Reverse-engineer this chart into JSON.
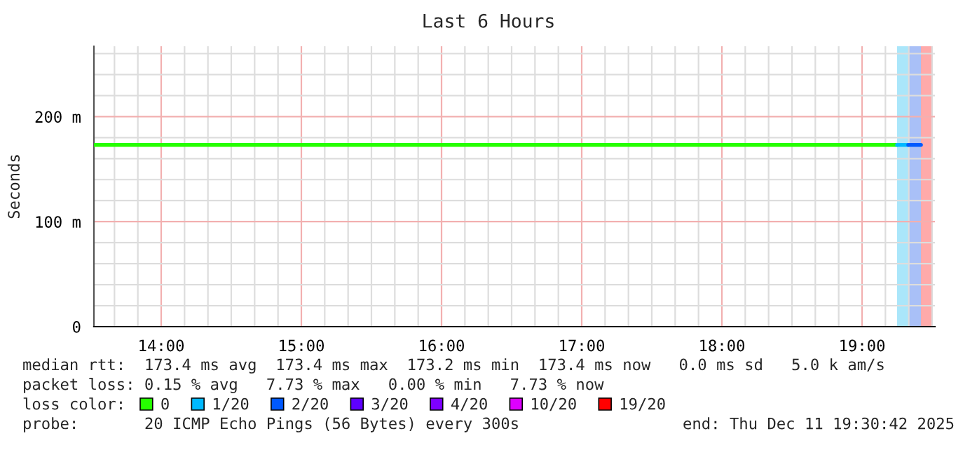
{
  "chart_data": {
    "type": "line",
    "title": "Last 6 Hours",
    "ylabel": "Seconds",
    "legend_title": "loss color:",
    "series": [
      {
        "name": "0",
        "color": "#26ff00",
        "x": [
          13.52,
          19.25
        ],
        "values": [
          173,
          173
        ]
      },
      {
        "name": "1/20",
        "color": "#00b8ff",
        "x": [
          19.25,
          19.33
        ],
        "values": [
          173,
          173
        ]
      },
      {
        "name": "2/20",
        "color": "#0059ff",
        "x": [
          19.33,
          19.42
        ],
        "values": [
          173,
          173
        ]
      },
      {
        "name": "3/20",
        "color": "#5e00ff"
      },
      {
        "name": "4/20",
        "color": "#7e00ff"
      },
      {
        "name": "10/20",
        "color": "#dd00ff"
      },
      {
        "name": "19/20",
        "color": "#ff0000"
      }
    ],
    "bands": [
      {
        "axis": "x",
        "from": 19.25,
        "to": 19.33,
        "color": "#aae6fa"
      },
      {
        "axis": "x",
        "from": 19.33,
        "to": 19.42,
        "color": "#a9c0f7"
      },
      {
        "axis": "x",
        "from": 19.42,
        "to": 19.5,
        "color": "#ffaaaa"
      }
    ],
    "xlim": [
      13.52,
      19.52
    ],
    "xticks": [
      {
        "value": 14,
        "label": "14:00"
      },
      {
        "value": 15,
        "label": "15:00"
      },
      {
        "value": 16,
        "label": "16:00"
      },
      {
        "value": 17,
        "label": "17:00"
      },
      {
        "value": 18,
        "label": "18:00"
      },
      {
        "value": 19,
        "label": "19:00"
      }
    ],
    "ylim": [
      0,
      267
    ],
    "yticks": [
      0,
      {
        "value": 100,
        "label": "100 m"
      },
      {
        "value": 200,
        "label": "200 m"
      }
    ],
    "grid": true,
    "legend": "bottom",
    "marker": "none",
    "line_style": "solid",
    "annotations": [
      "median rtt:  173.4 ms avg  173.4 ms max  173.2 ms min  173.4 ms now   0.0 ms sd   5.0 k am/s",
      "packet loss: 0.15 % avg   7.73 % max   0.00 % min   7.73 % now",
      "probe:       20 ICMP Echo Pings (56 Bytes) every 300s",
      "end: Thu Dec 11 19:30:42 2025"
    ]
  }
}
